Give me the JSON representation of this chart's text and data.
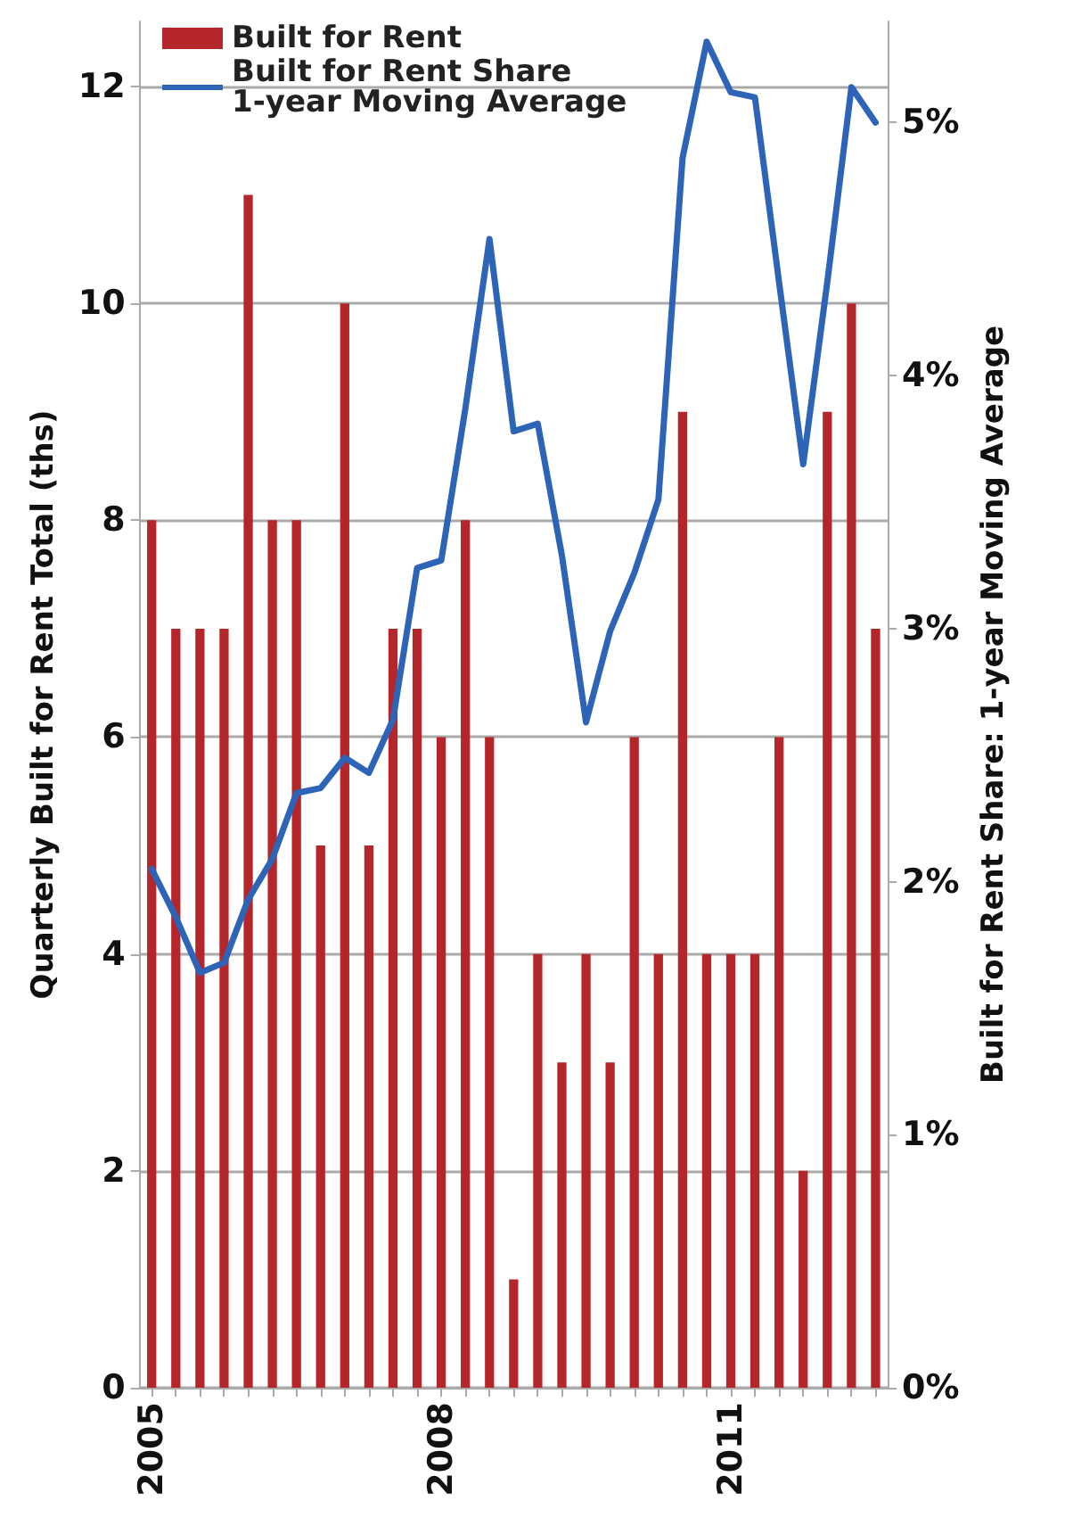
{
  "chart_data": {
    "type": "bar",
    "ylabel": "Quarterly Built for Rent Total (ths)",
    "y2label": "Built for Rent Share: 1-year Moving Average",
    "categories": [
      "2005",
      null,
      null,
      null,
      null,
      null,
      null,
      null,
      null,
      null,
      null,
      null,
      "2008",
      null,
      null,
      null,
      null,
      null,
      null,
      null,
      null,
      null,
      null,
      null,
      "2011",
      null,
      null,
      null,
      null,
      null,
      null
    ],
    "series": [
      {
        "name": "Built for Rent",
        "color": "#b5262a",
        "values": [
          8,
          7,
          7,
          7,
          11,
          8,
          8,
          5,
          10,
          5,
          7,
          7,
          6,
          8,
          6,
          1,
          4,
          3,
          4,
          3,
          6,
          4,
          9,
          4,
          4,
          4,
          6,
          2,
          9,
          10,
          7
        ]
      },
      {
        "name": "Built for Rent Share\n1-year Moving Average",
        "type": "line",
        "axis": "y2",
        "color": "#2e64b8",
        "values": [
          2.05,
          1.86,
          1.64,
          1.68,
          1.93,
          2.09,
          2.35,
          2.37,
          2.49,
          2.43,
          2.64,
          3.24,
          3.27,
          3.87,
          4.54,
          3.78,
          3.81,
          3.29,
          2.63,
          2.99,
          3.22,
          3.51,
          4.86,
          5.32,
          5.12,
          5.1,
          4.37,
          3.65,
          4.37,
          5.14,
          5.0
        ]
      }
    ],
    "ylim": [
      0,
      12.6
    ],
    "yticks": [
      0,
      2,
      4,
      6,
      8,
      10,
      12
    ],
    "y2lim": [
      0,
      5.4
    ],
    "y2ticks": [
      {
        "value": 0,
        "label": "0%"
      },
      {
        "value": 1,
        "label": "1%"
      },
      {
        "value": 2,
        "label": "2%"
      },
      {
        "value": 3,
        "label": "3%"
      },
      {
        "value": 4,
        "label": "4%"
      },
      {
        "value": 5,
        "label": "5%"
      }
    ],
    "grid": "y",
    "legend": "top left",
    "marker": "none",
    "line_style": "solid"
  }
}
